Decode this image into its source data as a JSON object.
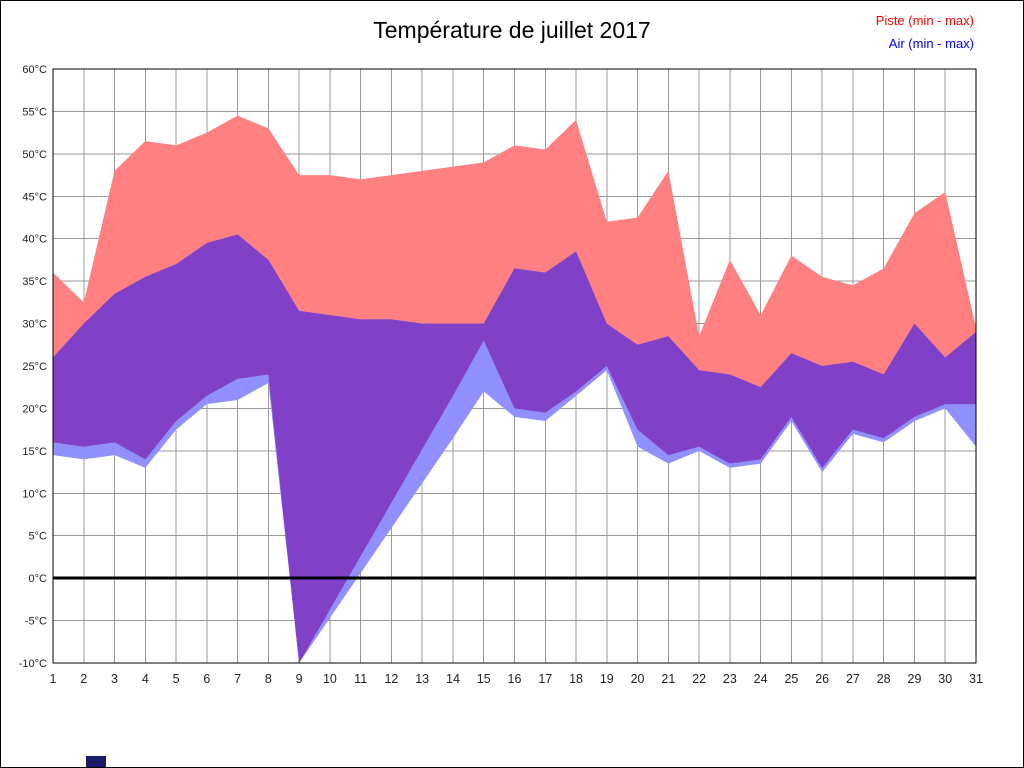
{
  "page": {
    "background": "#ffffff",
    "frame_color": "#000000",
    "bottom_left_marker_color": "#1a1a66"
  },
  "chart_data": {
    "type": "area",
    "title": "Température de juillet 2017",
    "xlabel": "",
    "ylabel": "",
    "y_unit": "°C",
    "ylim": [
      -10,
      60
    ],
    "y_tick_step": 5,
    "grid": true,
    "zero_line": true,
    "legend_position": "top-right",
    "x": [
      1,
      2,
      3,
      4,
      5,
      6,
      7,
      8,
      9,
      10,
      11,
      12,
      13,
      14,
      15,
      16,
      17,
      18,
      19,
      20,
      21,
      22,
      23,
      24,
      25,
      26,
      27,
      28,
      29,
      30,
      31
    ],
    "series": [
      {
        "name": "Piste (min - max)",
        "legend_color": "#ff0000",
        "band_color": "#ff8080",
        "min": [
          16,
          15.5,
          16,
          14,
          18.5,
          21.5,
          23.5,
          24,
          -10,
          -3.7,
          2.6,
          8.9,
          15.2,
          21.5,
          28,
          20,
          19.5,
          22,
          25,
          17.5,
          14.5,
          15.5,
          13.5,
          14,
          19,
          13,
          17.5,
          16.5,
          19,
          20.5,
          20.5
        ],
        "max": [
          36,
          32.5,
          48,
          51.5,
          51,
          52.5,
          54.5,
          53,
          47.5,
          47.5,
          47,
          47.5,
          48,
          48.5,
          49,
          51,
          50.5,
          54,
          42,
          42.5,
          48,
          28.5,
          37.5,
          31,
          38,
          35.5,
          34.5,
          36.5,
          43,
          45.5,
          29.5
        ]
      },
      {
        "name": "Air (min - max)",
        "legend_color": "#0000ff",
        "band_color": "#9090ff",
        "min": [
          14.5,
          14,
          14.5,
          13,
          17.5,
          20.5,
          21,
          23,
          -10,
          -4.7,
          0.6,
          5.9,
          11.2,
          16.5,
          22,
          19,
          18.5,
          21.5,
          24.5,
          15.5,
          13.5,
          15,
          13,
          13.5,
          18.5,
          12.5,
          17,
          16,
          18.5,
          20,
          15.5
        ],
        "max": [
          26,
          30,
          33.5,
          35.5,
          37,
          39.5,
          40.5,
          37.5,
          31.5,
          31,
          30.5,
          30.5,
          30,
          30,
          30,
          36.5,
          36,
          38.5,
          30,
          27.5,
          28.5,
          24.5,
          24,
          22.5,
          26.5,
          25,
          25.5,
          24,
          30,
          26,
          29
        ]
      }
    ],
    "overlap_color": "#8040c8",
    "grid_color": "#999999",
    "axis_color": "#000000"
  }
}
